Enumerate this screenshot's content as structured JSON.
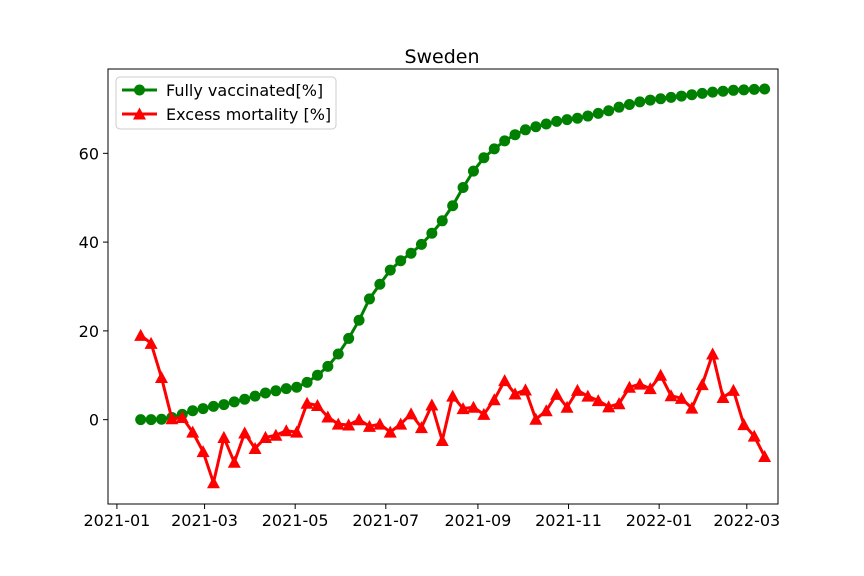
{
  "chart_data": {
    "type": "line",
    "title": "Sweden",
    "xlabel": "",
    "ylabel": "",
    "x_ticks": [
      "2021-01",
      "2021-03",
      "2021-05",
      "2021-07",
      "2021-09",
      "2021-11",
      "2022-01",
      "2022-03"
    ],
    "y_ticks": [
      0,
      20,
      40,
      60
    ],
    "xlim": [
      "2020-12-26",
      "2022-03-22"
    ],
    "ylim": [
      -19,
      79
    ],
    "grid": false,
    "legend_position": "top-left",
    "series": [
      {
        "name": "Fully vaccinated[%]",
        "color": "#008000",
        "marker": "circle",
        "x": [
          "2021-01-17",
          "2021-01-24",
          "2021-01-31",
          "2021-02-07",
          "2021-02-14",
          "2021-02-21",
          "2021-02-28",
          "2021-03-07",
          "2021-03-14",
          "2021-03-21",
          "2021-03-28",
          "2021-04-04",
          "2021-04-11",
          "2021-04-18",
          "2021-04-25",
          "2021-05-02",
          "2021-05-09",
          "2021-05-16",
          "2021-05-23",
          "2021-05-30",
          "2021-06-06",
          "2021-06-13",
          "2021-06-20",
          "2021-06-27",
          "2021-07-04",
          "2021-07-11",
          "2021-07-18",
          "2021-07-25",
          "2021-08-01",
          "2021-08-08",
          "2021-08-15",
          "2021-08-22",
          "2021-08-29",
          "2021-09-05",
          "2021-09-12",
          "2021-09-19",
          "2021-09-26",
          "2021-10-03",
          "2021-10-10",
          "2021-10-17",
          "2021-10-24",
          "2021-10-31",
          "2021-11-07",
          "2021-11-14",
          "2021-11-21",
          "2021-11-28",
          "2021-12-05",
          "2021-12-12",
          "2021-12-19",
          "2021-12-26",
          "2022-01-02",
          "2022-01-09",
          "2022-01-16",
          "2022-01-23",
          "2022-01-30",
          "2022-02-06",
          "2022-02-13",
          "2022-02-20",
          "2022-02-27",
          "2022-03-06",
          "2022-03-13"
        ],
        "y": [
          0,
          0,
          0.1,
          0.5,
          1.2,
          2.0,
          2.5,
          3.0,
          3.4,
          4.0,
          4.6,
          5.3,
          6.0,
          6.5,
          7.0,
          7.3,
          8.4,
          10.0,
          12.0,
          14.8,
          18.3,
          22.4,
          27.2,
          30.5,
          33.7,
          35.8,
          37.5,
          39.5,
          42.0,
          44.8,
          48.2,
          52.3,
          56.0,
          59.0,
          61.0,
          62.8,
          64.2,
          65.3,
          66.0,
          66.6,
          67.2,
          67.6,
          67.9,
          68.4,
          69.0,
          69.6,
          70.4,
          71.0,
          71.6,
          72.0,
          72.3,
          72.6,
          72.9,
          73.2,
          73.5,
          73.8,
          74.0,
          74.2,
          74.3,
          74.4,
          74.5
        ]
      },
      {
        "name": "Excess mortality [%]",
        "color": "#ff0000",
        "marker": "triangle",
        "x": [
          "2021-01-17",
          "2021-01-24",
          "2021-01-31",
          "2021-02-07",
          "2021-02-14",
          "2021-02-21",
          "2021-02-28",
          "2021-03-07",
          "2021-03-14",
          "2021-03-21",
          "2021-03-28",
          "2021-04-04",
          "2021-04-11",
          "2021-04-18",
          "2021-04-25",
          "2021-05-02",
          "2021-05-09",
          "2021-05-16",
          "2021-05-23",
          "2021-05-30",
          "2021-06-06",
          "2021-06-13",
          "2021-06-20",
          "2021-06-27",
          "2021-07-04",
          "2021-07-11",
          "2021-07-18",
          "2021-07-25",
          "2021-08-01",
          "2021-08-08",
          "2021-08-15",
          "2021-08-22",
          "2021-08-29",
          "2021-09-05",
          "2021-09-12",
          "2021-09-19",
          "2021-09-26",
          "2021-10-03",
          "2021-10-10",
          "2021-10-17",
          "2021-10-24",
          "2021-10-31",
          "2021-11-07",
          "2021-11-14",
          "2021-11-21",
          "2021-11-28",
          "2021-12-05",
          "2021-12-12",
          "2021-12-19",
          "2021-12-26",
          "2022-01-02",
          "2022-01-09",
          "2022-01-16",
          "2022-01-23",
          "2022-01-30",
          "2022-02-06",
          "2022-02-13",
          "2022-02-20",
          "2022-02-27",
          "2022-03-06",
          "2022-03-13"
        ],
        "y": [
          19.0,
          17.2,
          9.5,
          0.2,
          0.5,
          -2.8,
          -7.2,
          -14.2,
          -4.0,
          -9.6,
          -3.0,
          -6.5,
          -4.0,
          -3.5,
          -2.5,
          -2.8,
          3.7,
          3.2,
          0.6,
          -1.0,
          -1.2,
          0,
          -1.5,
          -1.0,
          -2.8,
          -1.0,
          1.3,
          -1.8,
          3.3,
          -4.7,
          5.3,
          2.5,
          2.8,
          1.2,
          4.5,
          8.8,
          5.8,
          6.7,
          0.1,
          2.0,
          5.7,
          2.8,
          6.6,
          5.3,
          4.3,
          2.9,
          3.6,
          7.3,
          8.0,
          7.0,
          10.0,
          5.4,
          4.8,
          2.6,
          7.9,
          14.8,
          5.0,
          6.6,
          -1.1,
          -3.7,
          -8.3
        ]
      }
    ]
  }
}
